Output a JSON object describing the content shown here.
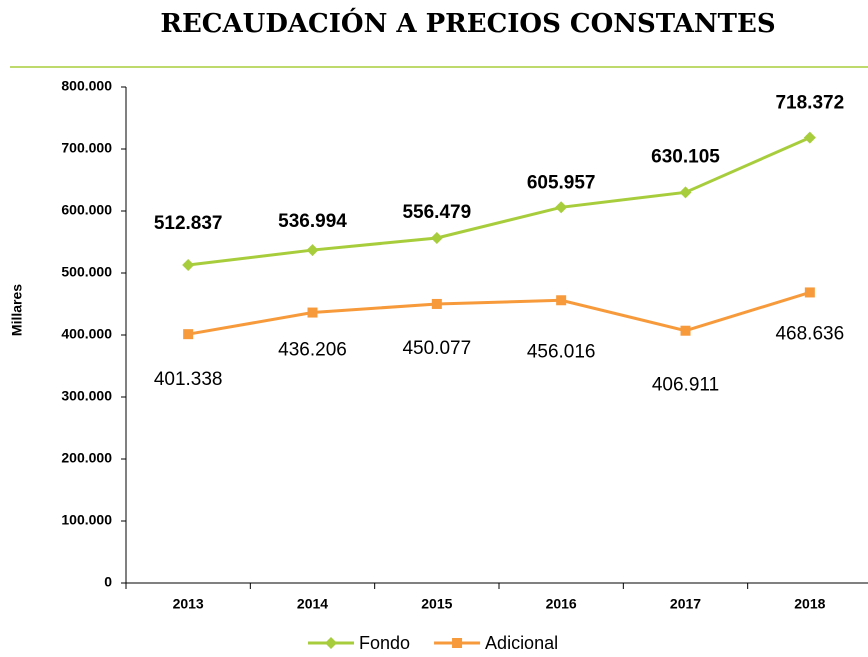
{
  "chart_data": {
    "type": "line",
    "title": "RECAUDACIÓN A PRECIOS CONSTANTES",
    "y_label": "Millares",
    "categories": [
      "2013",
      "2014",
      "2015",
      "2016",
      "2017",
      "2018"
    ],
    "series": [
      {
        "name": "Fondo",
        "color": "#a8cd3c",
        "marker": "diamond",
        "values": [
          512837,
          536994,
          556479,
          605957,
          630105,
          718372
        ],
        "value_labels": [
          "512.837",
          "536.994",
          "556.479",
          "605.957",
          "630.105",
          "718.372"
        ]
      },
      {
        "name": "Adicional",
        "color": "#f79a3b",
        "marker": "square",
        "values": [
          401338,
          436206,
          450077,
          456016,
          406911,
          468636
        ],
        "value_labels": [
          "401.338",
          "436.206",
          "450.077",
          "456.016",
          "406.911",
          "468.636"
        ]
      }
    ],
    "ylim": [
      0,
      800000
    ],
    "yticks": [
      0,
      {
        "value": 100000,
        "label": "100.000"
      },
      {
        "value": 200000,
        "label": "200.000"
      },
      {
        "value": 300000,
        "label": "300.000"
      },
      {
        "value": 400000,
        "label": "400.000"
      },
      {
        "value": 500000,
        "label": "500.000"
      },
      {
        "value": 600000,
        "label": "600.000"
      },
      {
        "value": 700000,
        "label": "700.000"
      },
      {
        "value": 800000,
        "label": "800.000"
      }
    ],
    "legend": "bottom"
  }
}
